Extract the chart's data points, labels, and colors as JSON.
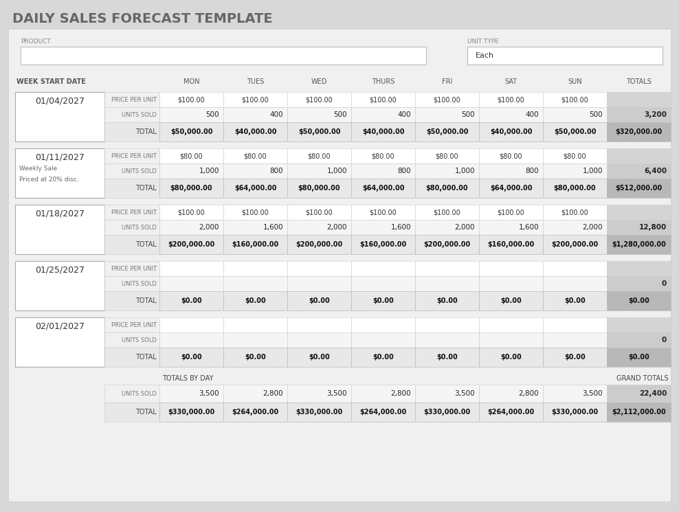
{
  "title": "DAILY SALES FORECAST TEMPLATE",
  "page_bg": "#d8d8d8",
  "content_bg": "#f0f0f0",
  "white": "#ffffff",
  "cell_white": "#ffffff",
  "cell_light": "#f5f5f5",
  "cell_mid": "#e8e8e8",
  "cell_gray": "#d4d4d4",
  "cell_dark": "#c8c8c8",
  "total_col_units": "#cccccc",
  "total_col_total": "#b8b8b8",
  "columns": [
    "MON",
    "TUES",
    "WED",
    "THURS",
    "FRI",
    "SAT",
    "SUN",
    "TOTALS"
  ],
  "weeks": [
    {
      "date": "01/04/2027",
      "note1": "",
      "note2": "",
      "price_per_unit": [
        "$100.00",
        "$100.00",
        "$100.00",
        "$100.00",
        "$100.00",
        "$100.00",
        "$100.00",
        ""
      ],
      "units_sold": [
        "500",
        "400",
        "500",
        "400",
        "500",
        "400",
        "500",
        "3,200"
      ],
      "total": [
        "$50,000.00",
        "$40,000.00",
        "$50,000.00",
        "$40,000.00",
        "$50,000.00",
        "$40,000.00",
        "$50,000.00",
        "$320,000.00"
      ]
    },
    {
      "date": "01/11/2027",
      "note1": "Weekly Sale",
      "note2": "Priced at 20% disc.",
      "price_per_unit": [
        "$80.00",
        "$80.00",
        "$80.00",
        "$80.00",
        "$80.00",
        "$80.00",
        "$80.00",
        ""
      ],
      "units_sold": [
        "1,000",
        "800",
        "1,000",
        "800",
        "1,000",
        "800",
        "1,000",
        "6,400"
      ],
      "total": [
        "$80,000.00",
        "$64,000.00",
        "$80,000.00",
        "$64,000.00",
        "$80,000.00",
        "$64,000.00",
        "$80,000.00",
        "$512,000.00"
      ]
    },
    {
      "date": "01/18/2027",
      "note1": "",
      "note2": "",
      "price_per_unit": [
        "$100.00",
        "$100.00",
        "$100.00",
        "$100.00",
        "$100.00",
        "$100.00",
        "$100.00",
        ""
      ],
      "units_sold": [
        "2,000",
        "1,600",
        "2,000",
        "1,600",
        "2,000",
        "1,600",
        "2,000",
        "12,800"
      ],
      "total": [
        "$200,000.00",
        "$160,000.00",
        "$200,000.00",
        "$160,000.00",
        "$200,000.00",
        "$160,000.00",
        "$200,000.00",
        "$1,280,000.00"
      ]
    },
    {
      "date": "01/25/2027",
      "note1": "",
      "note2": "",
      "price_per_unit": [
        "",
        "",
        "",
        "",
        "",
        "",
        "",
        ""
      ],
      "units_sold": [
        "",
        "",
        "",
        "",
        "",
        "",
        "",
        "0"
      ],
      "total": [
        "$0.00",
        "$0.00",
        "$0.00",
        "$0.00",
        "$0.00",
        "$0.00",
        "$0.00",
        "$0.00"
      ]
    },
    {
      "date": "02/01/2027",
      "note1": "",
      "note2": "",
      "price_per_unit": [
        "",
        "",
        "",
        "",
        "",
        "",
        "",
        ""
      ],
      "units_sold": [
        "",
        "",
        "",
        "",
        "",
        "",
        "",
        "0"
      ],
      "total": [
        "$0.00",
        "$0.00",
        "$0.00",
        "$0.00",
        "$0.00",
        "$0.00",
        "$0.00",
        "$0.00"
      ]
    }
  ],
  "totals_by_day_units": [
    "3,500",
    "2,800",
    "3,500",
    "2,800",
    "3,500",
    "2,800",
    "3,500",
    "22,400"
  ],
  "totals_by_day_total": [
    "$330,000.00",
    "$264,000.00",
    "$330,000.00",
    "$264,000.00",
    "$330,000.00",
    "$264,000.00",
    "$330,000.00",
    "$2,112,000.00"
  ]
}
